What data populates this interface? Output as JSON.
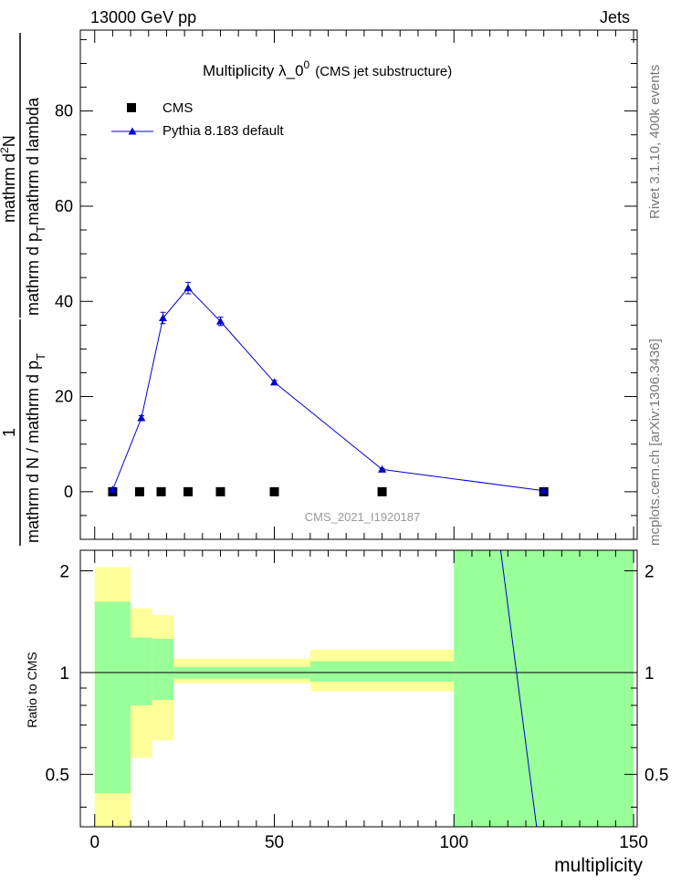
{
  "header": {
    "left": "13000 GeV pp",
    "right": "Jets"
  },
  "side_labels": {
    "rivet": "Rivet 3.1.10,  400k events",
    "mcplots": "mcplots.cern.ch [arXiv:1306.3436]"
  },
  "colors": {
    "mc": "#0000cc",
    "data": "#000000",
    "band_inner": "#99ff99",
    "band_outer": "#ffff99",
    "watermark": "#999999"
  },
  "chart_data": [
    {
      "type": "line",
      "title_main": "Multiplicity  λ_0",
      "title_sup": "0",
      "title_sub": "(CMS jet substructure)",
      "watermark": "CMS_2021_I1920187",
      "ylabel": {
        "numerator_num": "1",
        "numerator_den": "mathrm d N / mathrm d p",
        "numerator_den_sub": "T",
        "fraction_num": "mathrm d",
        "fraction_num_sup": "2",
        "fraction_num_tail": "N",
        "fraction_den": "mathrm d p",
        "fraction_den_sub": "T",
        "fraction_den_tail": "mathrm d lambda"
      },
      "xlim": [
        -4,
        151
      ],
      "ylim": [
        -10,
        97
      ],
      "yticks": [
        0,
        20,
        40,
        60,
        80
      ],
      "legend_position": "top-left",
      "series": [
        {
          "name": "CMS",
          "marker": "square",
          "x": [
            5,
            12.5,
            18.5,
            26,
            35,
            50,
            80,
            125
          ],
          "y": [
            0,
            0,
            0,
            0,
            0,
            0,
            0,
            0
          ]
        },
        {
          "name": "Pythia 8.183 default",
          "marker": "triangle",
          "x": [
            5,
            13,
            19,
            26,
            35,
            50,
            80,
            125
          ],
          "y": [
            0.4,
            15.5,
            36.5,
            42.8,
            35.8,
            23.0,
            4.7,
            0.2
          ],
          "yerr": [
            0.2,
            0.5,
            1.2,
            1.2,
            0.9,
            0.4,
            0.2,
            0.05
          ]
        }
      ]
    },
    {
      "type": "line",
      "ylabel": "Ratio to CMS",
      "xlabel": "multiplicity",
      "xlim": [
        -4,
        151
      ],
      "ylim": [
        0.35,
        2.3
      ],
      "yticks": [
        0.5,
        1,
        2
      ],
      "xticks": [
        0,
        50,
        100,
        150
      ],
      "reference": 1,
      "bands": [
        {
          "x0": 0,
          "x1": 10,
          "inner": [
            0.44,
            1.62
          ],
          "outer": [
            0.35,
            2.05
          ]
        },
        {
          "x0": 10,
          "x1": 16,
          "inner": [
            0.8,
            1.27
          ],
          "outer": [
            0.56,
            1.55
          ]
        },
        {
          "x0": 16,
          "x1": 22,
          "inner": [
            0.83,
            1.26
          ],
          "outer": [
            0.63,
            1.48
          ]
        },
        {
          "x0": 22,
          "x1": 60,
          "inner": [
            0.96,
            1.04
          ],
          "outer": [
            0.93,
            1.1
          ]
        },
        {
          "x0": 60,
          "x1": 100,
          "inner": [
            0.94,
            1.08
          ],
          "outer": [
            0.88,
            1.17
          ]
        },
        {
          "x0": 100,
          "x1": 150,
          "inner": [
            0.35,
            2.3
          ],
          "outer": [
            0.35,
            2.3
          ]
        }
      ],
      "series": [
        {
          "name": "Pythia 8.183 default",
          "x": [
            113,
            123
          ],
          "y": [
            2.3,
            0.35
          ]
        }
      ]
    }
  ]
}
